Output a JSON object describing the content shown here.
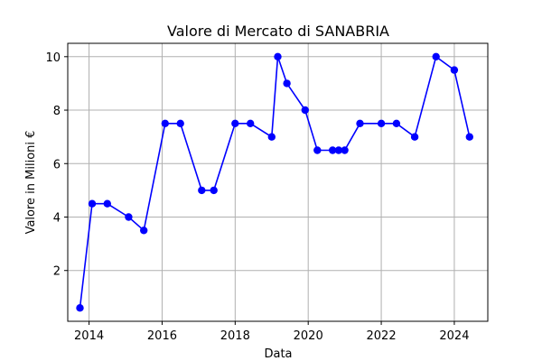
{
  "chart_data": {
    "type": "line",
    "title": "Valore di Mercato di SANABRIA",
    "xlabel": "Data",
    "ylabel": "Valore in Milioni €",
    "x_is_date": true,
    "x": [
      "2013-10-01",
      "2014-02-01",
      "2014-07-01",
      "2015-02-01",
      "2015-07-01",
      "2016-02-01",
      "2016-07-01",
      "2017-02-01",
      "2017-06-01",
      "2018-01-01",
      "2018-06-01",
      "2019-01-01",
      "2019-03-01",
      "2019-06-01",
      "2019-12-01",
      "2020-04-01",
      "2020-09-01",
      "2020-11-01",
      "2021-01-01",
      "2021-06-01",
      "2022-01-01",
      "2022-06-01",
      "2022-12-01",
      "2023-07-01",
      "2024-01-01",
      "2024-06-01"
    ],
    "series": [
      {
        "color": "#0000ff",
        "marker": "circle",
        "values": [
          0.6,
          4.5,
          4.5,
          4.0,
          3.5,
          7.5,
          7.5,
          5.0,
          5.0,
          7.5,
          7.5,
          7.0,
          10.0,
          9.0,
          8.0,
          6.5,
          6.5,
          6.5,
          6.5,
          7.5,
          7.5,
          7.5,
          7.0,
          10.0,
          9.5,
          7.0
        ]
      }
    ],
    "x_ticks": [
      "2014",
      "2016",
      "2018",
      "2020",
      "2022",
      "2024"
    ],
    "y_ticks": [
      2,
      4,
      6,
      8,
      10
    ],
    "xlim": [
      "2013-06-01",
      "2024-12-01"
    ],
    "ylim": [
      0.1,
      10.5
    ],
    "grid": true,
    "legend": "none"
  }
}
